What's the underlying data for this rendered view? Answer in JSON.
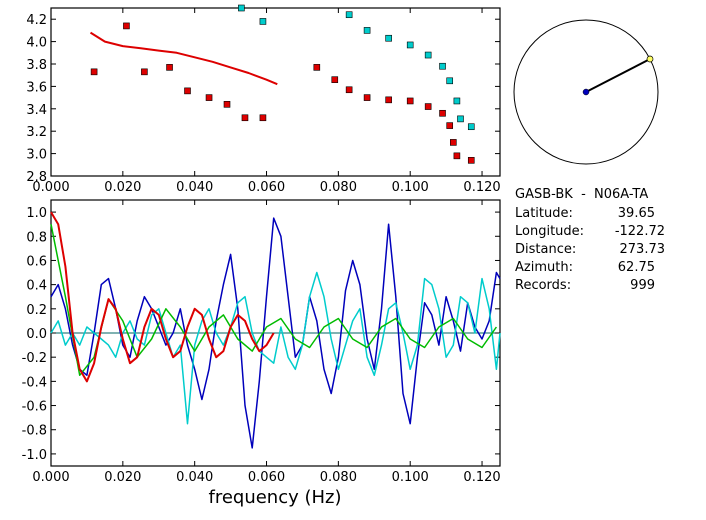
{
  "chart_data": [
    {
      "type": "scatter",
      "title": "",
      "xlabel": "",
      "ylabel": "",
      "xlim": [
        0.0,
        0.125
      ],
      "ylim": [
        2.8,
        4.3
      ],
      "xticks": [
        "0.000",
        "0.020",
        "0.040",
        "0.060",
        "0.080",
        "0.100",
        "0.120"
      ],
      "xtick_values": [
        0.0,
        0.02,
        0.04,
        0.06,
        0.08,
        0.1,
        0.12
      ],
      "yticks": [
        "2.8",
        "3.0",
        "3.2",
        "3.4",
        "3.6",
        "3.8",
        "4.0",
        "4.2"
      ],
      "ytick_values": [
        2.8,
        3.0,
        3.2,
        3.4,
        3.6,
        3.8,
        4.0,
        4.2
      ],
      "series": [
        {
          "name": "red-points",
          "color": "#dd0000",
          "kind": "points",
          "x": [
            0.012,
            0.021,
            0.026,
            0.033,
            0.038,
            0.044,
            0.049,
            0.054,
            0.059,
            0.074,
            0.079,
            0.083,
            0.088,
            0.094,
            0.1,
            0.105,
            0.109,
            0.111,
            0.112,
            0.113,
            0.117
          ],
          "y": [
            3.73,
            4.14,
            3.73,
            3.77,
            3.56,
            3.5,
            3.44,
            3.32,
            3.32,
            3.77,
            3.66,
            3.57,
            3.5,
            3.48,
            3.47,
            3.42,
            3.36,
            3.25,
            3.1,
            2.98,
            2.94
          ]
        },
        {
          "name": "cyan-points",
          "color": "#00cccc",
          "kind": "points",
          "x": [
            0.053,
            0.059,
            0.083,
            0.088,
            0.094,
            0.1,
            0.105,
            0.109,
            0.111,
            0.113,
            0.114,
            0.117
          ],
          "y": [
            4.3,
            4.18,
            4.24,
            4.1,
            4.03,
            3.97,
            3.88,
            3.78,
            3.65,
            3.47,
            3.31,
            3.24
          ]
        },
        {
          "name": "red-curve",
          "color": "#dd0000",
          "kind": "line",
          "x": [
            0.011,
            0.015,
            0.02,
            0.025,
            0.03,
            0.035,
            0.04,
            0.045,
            0.05,
            0.055,
            0.06,
            0.063
          ],
          "y": [
            4.08,
            4.0,
            3.96,
            3.94,
            3.92,
            3.9,
            3.86,
            3.82,
            3.77,
            3.72,
            3.66,
            3.62
          ]
        }
      ]
    },
    {
      "type": "line",
      "title": "",
      "xlabel": "frequency (Hz)",
      "ylabel": "",
      "xlim": [
        0.0,
        0.125
      ],
      "ylim": [
        -1.1,
        1.1
      ],
      "xticks": [
        "0.000",
        "0.020",
        "0.040",
        "0.060",
        "0.080",
        "0.100",
        "0.120"
      ],
      "xtick_values": [
        0.0,
        0.02,
        0.04,
        0.06,
        0.08,
        0.1,
        0.12
      ],
      "yticks": [
        "1.0",
        "0.8",
        "0.6",
        "0.4",
        "0.2",
        "0.0",
        "-0.2",
        "-0.4",
        "-0.6",
        "-0.8",
        "-1.0"
      ],
      "ytick_values": [
        1.0,
        0.8,
        0.6,
        0.4,
        0.2,
        0.0,
        -0.2,
        -0.4,
        -0.6,
        -0.8,
        -1.0
      ],
      "zero_line": true,
      "series": [
        {
          "name": "blue",
          "color": "#0000bb",
          "x": [
            0,
            0.002,
            0.004,
            0.006,
            0.008,
            0.01,
            0.012,
            0.014,
            0.016,
            0.018,
            0.02,
            0.022,
            0.024,
            0.026,
            0.028,
            0.03,
            0.032,
            0.034,
            0.036,
            0.038,
            0.04,
            0.042,
            0.044,
            0.046,
            0.048,
            0.05,
            0.052,
            0.054,
            0.056,
            0.058,
            0.06,
            0.062,
            0.064,
            0.066,
            0.068,
            0.07,
            0.072,
            0.074,
            0.076,
            0.078,
            0.08,
            0.082,
            0.084,
            0.086,
            0.088,
            0.09,
            0.092,
            0.094,
            0.096,
            0.098,
            0.1,
            0.102,
            0.104,
            0.106,
            0.108,
            0.11,
            0.112,
            0.114,
            0.116,
            0.118,
            0.12,
            0.122,
            0.124,
            0.125
          ],
          "y": [
            0.3,
            0.4,
            0.2,
            -0.1,
            -0.3,
            -0.35,
            0.0,
            0.4,
            0.45,
            0.2,
            -0.1,
            -0.2,
            0.1,
            0.3,
            0.2,
            0.05,
            -0.1,
            0.0,
            0.2,
            -0.1,
            -0.3,
            -0.55,
            -0.3,
            0.1,
            0.4,
            0.65,
            0.2,
            -0.6,
            -0.95,
            -0.4,
            0.3,
            0.95,
            0.8,
            0.3,
            -0.2,
            -0.1,
            0.3,
            0.1,
            -0.3,
            -0.5,
            -0.2,
            0.35,
            0.6,
            0.4,
            -0.05,
            -0.3,
            0.2,
            0.9,
            0.3,
            -0.5,
            -0.75,
            -0.2,
            0.25,
            0.15,
            -0.1,
            0.3,
            0.1,
            -0.15,
            0.25,
            0.05,
            -0.05,
            0.1,
            0.5,
            0.45
          ]
        },
        {
          "name": "cyan",
          "color": "#00cccc",
          "x": [
            0,
            0.002,
            0.004,
            0.006,
            0.008,
            0.01,
            0.012,
            0.014,
            0.016,
            0.018,
            0.02,
            0.022,
            0.024,
            0.026,
            0.028,
            0.03,
            0.032,
            0.034,
            0.036,
            0.038,
            0.04,
            0.042,
            0.044,
            0.046,
            0.048,
            0.05,
            0.052,
            0.054,
            0.056,
            0.058,
            0.06,
            0.062,
            0.064,
            0.066,
            0.068,
            0.07,
            0.072,
            0.074,
            0.076,
            0.078,
            0.08,
            0.082,
            0.084,
            0.086,
            0.088,
            0.09,
            0.092,
            0.094,
            0.096,
            0.098,
            0.1,
            0.102,
            0.104,
            0.106,
            0.108,
            0.11,
            0.112,
            0.114,
            0.116,
            0.118,
            0.12,
            0.122,
            0.124,
            0.125
          ],
          "y": [
            0.0,
            0.1,
            -0.1,
            0.0,
            -0.1,
            0.05,
            0.0,
            -0.05,
            -0.1,
            -0.2,
            0.0,
            0.1,
            -0.05,
            -0.1,
            0.15,
            0.2,
            0.0,
            -0.2,
            -0.1,
            -0.75,
            -0.1,
            0.1,
            0.2,
            0.0,
            -0.1,
            0.05,
            0.25,
            0.3,
            0.0,
            -0.15,
            -0.2,
            -0.25,
            0.05,
            -0.2,
            -0.3,
            -0.1,
            0.3,
            0.5,
            0.3,
            -0.05,
            -0.3,
            -0.1,
            0.1,
            0.2,
            -0.2,
            -0.35,
            -0.1,
            0.2,
            0.25,
            0.0,
            -0.3,
            -0.1,
            0.45,
            0.4,
            0.2,
            -0.2,
            -0.1,
            0.3,
            0.25,
            0.0,
            0.45,
            0.2,
            -0.3,
            0.0
          ]
        },
        {
          "name": "green",
          "color": "#00bb00",
          "x": [
            0,
            0.004,
            0.008,
            0.012,
            0.016,
            0.02,
            0.024,
            0.028,
            0.032,
            0.036,
            0.04,
            0.044,
            0.048,
            0.052,
            0.056,
            0.06,
            0.064,
            0.068,
            0.072,
            0.076,
            0.08,
            0.084,
            0.088,
            0.092,
            0.096,
            0.1,
            0.104,
            0.108,
            0.112,
            0.116,
            0.12,
            0.124
          ],
          "y": [
            0.9,
            0.3,
            -0.35,
            -0.2,
            0.28,
            0.1,
            -0.2,
            -0.05,
            0.2,
            0.05,
            -0.15,
            0.05,
            0.15,
            -0.05,
            -0.15,
            0.05,
            0.12,
            -0.05,
            -0.12,
            0.05,
            0.12,
            -0.05,
            -0.12,
            0.05,
            0.12,
            -0.05,
            -0.12,
            0.05,
            0.12,
            -0.05,
            -0.12,
            0.05
          ]
        },
        {
          "name": "red",
          "color": "#dd0000",
          "x": [
            0,
            0.002,
            0.004,
            0.006,
            0.008,
            0.01,
            0.012,
            0.014,
            0.016,
            0.018,
            0.02,
            0.022,
            0.024,
            0.026,
            0.028,
            0.03,
            0.032,
            0.034,
            0.036,
            0.038,
            0.04,
            0.042,
            0.044,
            0.046,
            0.048,
            0.05,
            0.052,
            0.054,
            0.056,
            0.058,
            0.06,
            0.062
          ],
          "y": [
            1.0,
            0.9,
            0.55,
            0.0,
            -0.3,
            -0.4,
            -0.25,
            0.05,
            0.28,
            0.2,
            -0.05,
            -0.25,
            -0.2,
            0.05,
            0.2,
            0.15,
            -0.05,
            -0.2,
            -0.15,
            0.05,
            0.2,
            0.15,
            -0.05,
            -0.2,
            -0.15,
            0.05,
            0.15,
            0.1,
            -0.05,
            -0.15,
            -0.1,
            0.0
          ]
        }
      ]
    }
  ],
  "compass": {
    "azimuth_deg": 62.75,
    "circle_color": "#000000",
    "center_dot_color": "#0000bb",
    "end_dot_color": "#ffff66"
  },
  "info": {
    "station_line": "GASB-BK  -  N06A-TA",
    "rows": [
      {
        "label": "Latitude:",
        "value": "39.65"
      },
      {
        "label": "Longitude:",
        "value": "-122.72"
      },
      {
        "label": "Distance:",
        "value": "273.73"
      },
      {
        "label": "Azimuth:",
        "value": "62.75"
      },
      {
        "label": "Records:",
        "value": "999"
      }
    ]
  }
}
